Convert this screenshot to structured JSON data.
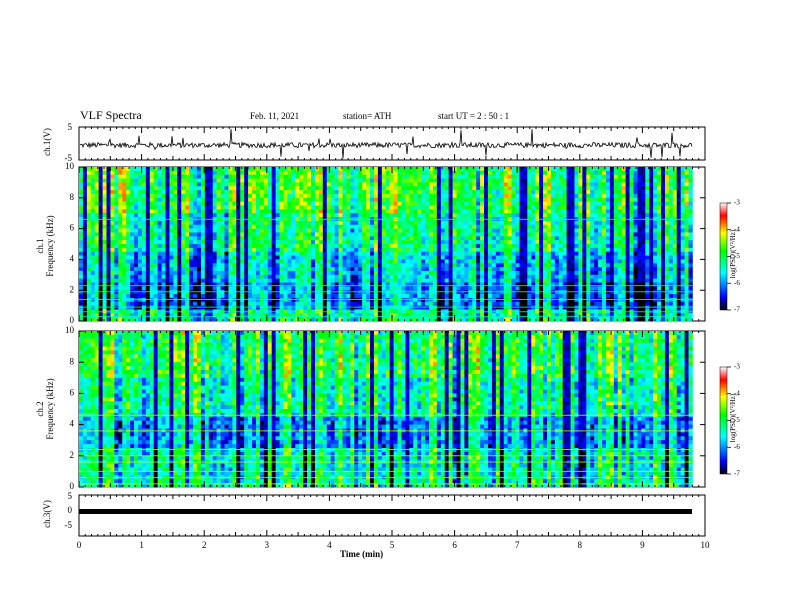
{
  "header": {
    "title": "VLF Spectra",
    "date": "Feb. 11, 2021",
    "station": "station= ATH",
    "start": "start  UT =   2 : 50 : 1"
  },
  "axes": {
    "ch1_wave_label": "ch.1(V)",
    "ch1_spec_label": "ch.1\nFrequency (kHz)",
    "ch2_spec_label": "ch.2\nFrequency (kHz)",
    "ch3_wave_label": "ch.3(V)",
    "x_label": "Time (min)",
    "colorbar_label": "log(PSD)(V²/Hz)"
  },
  "chart_data": [
    {
      "type": "line",
      "name": "ch1-waveform",
      "ylabel": "ch.1(V)",
      "ylim": [
        -5,
        5
      ],
      "yticks": [
        "5",
        "-5"
      ],
      "xlim": [
        0,
        10
      ],
      "note_values": "noisy trace centered near -0.5 V with spikes to ~+5 and ~-5 V"
    },
    {
      "type": "heatmap",
      "name": "ch1-spectrogram",
      "ylabel": "Frequency (kHz)",
      "ylim": [
        0,
        10
      ],
      "yticks": [
        0,
        2,
        4,
        6,
        8,
        10
      ],
      "xlim": [
        0,
        9.8
      ],
      "colorbar": {
        "label": "log(PSD)(V²/Hz)",
        "range": [
          -7,
          -3
        ],
        "ticks": [
          "-3",
          "-4",
          "-5",
          "-6",
          "-7"
        ]
      }
    },
    {
      "type": "heatmap",
      "name": "ch2-spectrogram",
      "ylabel": "Frequency (kHz)",
      "ylim": [
        0,
        10
      ],
      "yticks": [
        0,
        2,
        4,
        6,
        8,
        10
      ],
      "xlim": [
        0,
        9.8
      ],
      "colorbar": {
        "label": "log(PSD)(V²/Hz)",
        "range": [
          -7,
          -3
        ],
        "ticks": [
          "-3",
          "-4",
          "-5",
          "-6",
          "-7"
        ]
      }
    },
    {
      "type": "line",
      "name": "ch3-waveform",
      "ylabel": "ch.3(V)",
      "ylim": [
        -5,
        5
      ],
      "yticks": [
        "5",
        "0",
        "-5"
      ],
      "x": [
        0,
        9.8
      ],
      "y": [
        0,
        0
      ]
    }
  ],
  "x_axis": {
    "range": [
      0,
      10
    ],
    "ticks": [
      "0",
      "1",
      "2",
      "3",
      "4",
      "5",
      "6",
      "7",
      "8",
      "9",
      "10"
    ]
  }
}
